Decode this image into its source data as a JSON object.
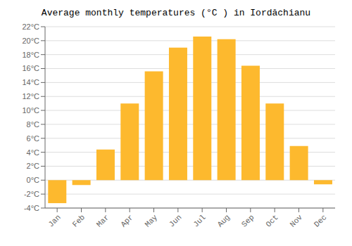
{
  "chart_data": {
    "type": "bar",
    "title": "Average monthly temperatures (°C ) in Iordăchianu",
    "categories": [
      "Jan",
      "Feb",
      "Mar",
      "Apr",
      "May",
      "Jun",
      "Jul",
      "Aug",
      "Sep",
      "Oct",
      "Nov",
      "Dec"
    ],
    "values": [
      -3.3,
      -0.7,
      4.4,
      11.0,
      15.6,
      19.0,
      20.6,
      20.2,
      16.4,
      11.0,
      4.9,
      -0.6
    ],
    "color": "#FDB92E",
    "ylim": [
      -4,
      22
    ],
    "yticks": [
      {
        "value": -4,
        "label": "-4°C"
      },
      {
        "value": -2,
        "label": "-2°C"
      },
      {
        "value": 0,
        "label": "0°C"
      },
      {
        "value": 2,
        "label": "2°C"
      },
      {
        "value": 4,
        "label": "4°C"
      },
      {
        "value": 6,
        "label": "6°C"
      },
      {
        "value": 8,
        "label": "8°C"
      },
      {
        "value": 10,
        "label": "10°C"
      },
      {
        "value": 12,
        "label": "12°C"
      },
      {
        "value": 14,
        "label": "14°C"
      },
      {
        "value": 16,
        "label": "16°C"
      },
      {
        "value": 18,
        "label": "18°C"
      },
      {
        "value": 20,
        "label": "20°C"
      },
      {
        "value": 22,
        "label": "22°C"
      }
    ],
    "grid": true
  }
}
